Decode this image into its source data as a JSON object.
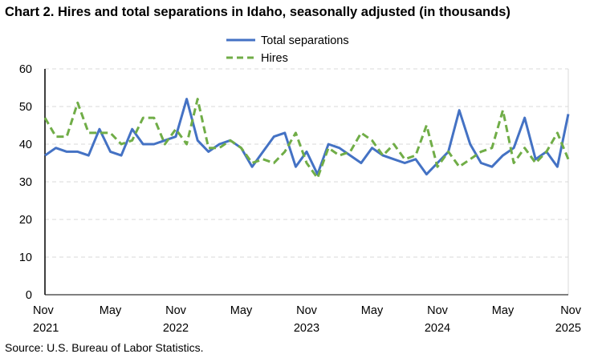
{
  "chart_data": {
    "type": "line",
    "title": "Chart 2. Hires and total separations in Idaho, seasonally adjusted (in thousands)",
    "source": "Source: U.S. Bureau of Labor Statistics.",
    "ylim": [
      0,
      60
    ],
    "yticks": [
      0,
      10,
      20,
      30,
      40,
      50,
      60
    ],
    "grid": true,
    "legend": "top-center",
    "xticks": [
      {
        "index": 0,
        "month": "Nov",
        "year": "2021"
      },
      {
        "index": 6,
        "month": "May",
        "year": ""
      },
      {
        "index": 12,
        "month": "Nov",
        "year": "2022"
      },
      {
        "index": 18,
        "month": "May",
        "year": ""
      },
      {
        "index": 24,
        "month": "Nov",
        "year": "2023"
      },
      {
        "index": 30,
        "month": "May",
        "year": ""
      },
      {
        "index": 36,
        "month": "Nov",
        "year": "2024"
      },
      {
        "index": 42,
        "month": "May",
        "year": ""
      },
      {
        "index": 48,
        "month": "Nov",
        "year": "2025"
      }
    ],
    "series": [
      {
        "name": "Total separations",
        "color": "#4472C4",
        "dash": "solid",
        "values": [
          37,
          39,
          38,
          38,
          37,
          44,
          38,
          37,
          44,
          40,
          40,
          41,
          42,
          52,
          41,
          38,
          40,
          41,
          39,
          34,
          38,
          42,
          43,
          34,
          38,
          32,
          40,
          39,
          37,
          35,
          39,
          37,
          36,
          35,
          36,
          32,
          35,
          38,
          49,
          40,
          35,
          34,
          37,
          39,
          47,
          36,
          38,
          34,
          48
        ]
      },
      {
        "name": "Hires",
        "color": "#70AD47",
        "dash": "dashed",
        "values": [
          47,
          42,
          42,
          51,
          43,
          43,
          43,
          40,
          41,
          47,
          47,
          40,
          44,
          40,
          52,
          39,
          39,
          41,
          39,
          35,
          36,
          35,
          38,
          43,
          35,
          31,
          39,
          37,
          38,
          43,
          41,
          37,
          40,
          36,
          37,
          45,
          34,
          38,
          34,
          36,
          38,
          39,
          49,
          35,
          39,
          35,
          38,
          43,
          36
        ]
      }
    ]
  }
}
